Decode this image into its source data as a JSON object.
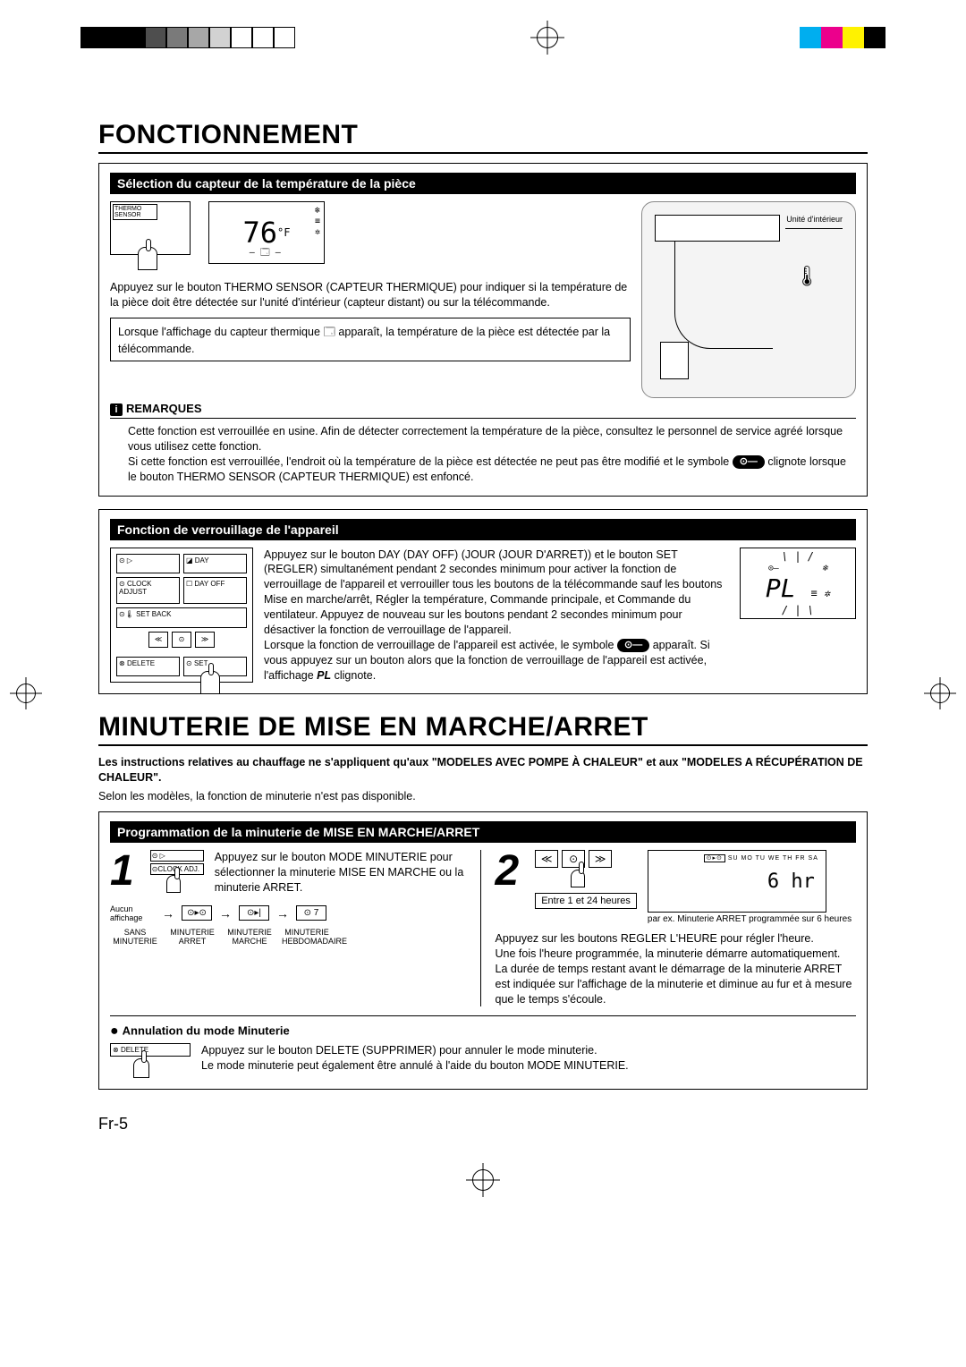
{
  "registration": {
    "mono_colors": [
      "#000000",
      "#000000",
      "#000000",
      "#4e4e4e",
      "#7a7a7a",
      "#a7a7a7",
      "#d2d2d2",
      "#ffffff",
      "#ffffff",
      "#ffffff"
    ],
    "cmyk_colors": [
      "#00aeef",
      "#ec008c",
      "#fff200",
      "#000000"
    ]
  },
  "title1": "FONCTIONNEMENT",
  "sect1": {
    "header": "Sélection du capteur de la température de la pièce",
    "thermo_label": "THERMO SENSOR",
    "lcd_temp": "76",
    "lcd_unit": "°F",
    "para": "Appuyez sur le bouton THERMO SENSOR (CAPTEUR THERMIQUE) pour indiquer si la température de la pièce doit être détectée sur l'unité d'intérieur (capteur distant) ou sur la télécommande.",
    "note": "Lorsque l'affichage du capteur thermique 🗔 apparaît, la température de la pièce est détectée par la télécommande.",
    "indoor_unit_label": "Unité d'intérieur",
    "remarques_label": "REMARQUES",
    "remarques_p1": "Cette fonction est verrouillée en usine. Afin de détecter correctement la température de la pièce, consultez le personnel de service agréé lorsque vous utilisez cette fonction.",
    "remarques_p2_a": "Si cette fonction est verrouillée, l'endroit où la température de la pièce est détectée ne peut pas être modifié et le symbole ",
    "remarques_p2_b": " clignote lorsque le bouton THERMO SENSOR (CAPTEUR THERMIQUE) est enfoncé."
  },
  "sect2": {
    "header": "Fonction de verrouillage de l'appareil",
    "remote": {
      "day": "DAY",
      "day_off": "DAY OFF",
      "clock_adjust": "CLOCK ADJUST",
      "set_back": "SET BACK",
      "delete": "DELETE",
      "set": "SET"
    },
    "para_a": "Appuyez sur le bouton DAY (DAY OFF) (JOUR (JOUR D'ARRET)) et le bouton SET (REGLER) simultanément pendant 2 secondes minimum pour activer la fonction de verrouillage de l'appareil et verrouiller tous les boutons de la télécommande sauf les boutons Mise en marche/arrêt, Régler la température, Commande principale, et Commande du ventilateur. Appuyez de nouveau sur les boutons pendant 2 secondes minimum pour désactiver la fonction de verrouillage de l'appareil.",
    "para_b": "Lorsque la fonction de verrouillage de l'appareil est activée, le symbole ",
    "para_c": " apparaît. Si vous appuyez sur un bouton alors que la fonction de verrouillage de l'appareil est activée, l'affichage ",
    "para_d": " clignote.",
    "lock_symbol": "⊙—",
    "pl_text": "PL"
  },
  "title2": "MINUTERIE DE MISE EN MARCHE/ARRET",
  "intro_bold": "Les instructions relatives au chauffage ne s'appliquent qu'aux \"MODELES AVEC POMPE À CHALEUR\" et aux \"MODELES A RÉCUPÉRATION DE CHALEUR\".",
  "intro2": "Selon les modèles, la fonction de minuterie n'est pas disponible.",
  "sect3": {
    "header": "Programmation de la minuterie de MISE EN MARCHE/ARRET",
    "step1": {
      "num": "1",
      "clock_adj": "CLOCK ADJ.",
      "para": "Appuyez sur le bouton MODE MINUTERIE pour sélectionner la minuterie MISE EN MARCHE ou la minuterie ARRET.",
      "flow_start": "Aucun affichage",
      "flow_items": [
        "⊙▸⊙",
        "⊙▸|",
        "⊙ 7"
      ],
      "flow_labels": [
        "SANS MINUTERIE",
        "MINUTERIE ARRET",
        "MINUTERIE MARCHE",
        "MINUTERIE HEBDOMADAIRE"
      ]
    },
    "step2": {
      "num": "2",
      "range_label": "Entre 1 et 24 heures",
      "days": "SU MO TU WE TH FR SA",
      "timer_icon": "⊙▸⊙",
      "display_val": "6 hr",
      "caption": "par ex. Minuterie ARRET programmée sur 6 heures",
      "p1": "Appuyez sur les boutons REGLER L'HEURE pour régler l'heure.",
      "p2": "Une fois l'heure programmée, la minuterie démarre automatiquement.",
      "p3": "La durée de temps restant avant le démarrage de la minuterie ARRET est indiquée sur l'affichage de la minuterie et diminue au fur et à mesure que le temps s'écoule."
    },
    "cancel": {
      "heading": "Annulation du mode Minuterie",
      "delete": "DELETE",
      "p1": "Appuyez sur le bouton DELETE (SUPPRIMER) pour annuler le mode minuterie.",
      "p2": "Le mode minuterie peut également être annulé à l'aide du bouton MODE MINUTERIE."
    }
  },
  "page_num": "Fr-5"
}
